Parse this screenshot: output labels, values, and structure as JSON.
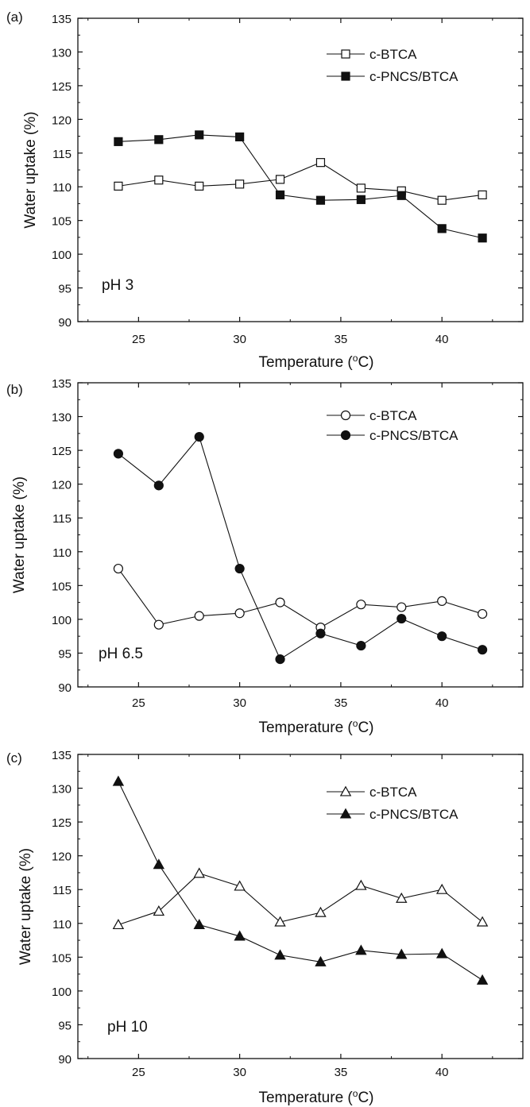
{
  "chart_data": [
    {
      "type": "line",
      "panel_label": "(a)",
      "annotation": "pH 3",
      "xlabel": "Temperature (",
      "xlabel_deg": "o",
      "xlabel_unit": "C)",
      "ylabel": "Water uptake (%)",
      "xlim": [
        22,
        44
      ],
      "ylim": [
        90,
        135
      ],
      "xticks": [
        25,
        30,
        35,
        40
      ],
      "yticks": [
        90,
        95,
        100,
        105,
        110,
        115,
        120,
        125,
        130,
        135
      ],
      "x": [
        24,
        26,
        28,
        30,
        32,
        34,
        36,
        38,
        40,
        42
      ],
      "marker": "square",
      "series": [
        {
          "name": "c-BTCA",
          "filled": false,
          "values": [
            110.1,
            111.0,
            110.1,
            110.4,
            111.1,
            113.6,
            109.8,
            109.4,
            108.0,
            108.8
          ]
        },
        {
          "name": "c-PNCS/BTCA",
          "filled": true,
          "values": [
            116.7,
            117.0,
            117.7,
            117.4,
            108.8,
            108.0,
            108.1,
            108.7,
            103.8,
            102.4
          ]
        }
      ]
    },
    {
      "type": "line",
      "panel_label": "(b)",
      "annotation": "pH 6.5",
      "xlabel": "Temperature (",
      "xlabel_deg": "o",
      "xlabel_unit": "C)",
      "ylabel": "Water uptake (%)",
      "xlim": [
        22,
        44
      ],
      "ylim": [
        90,
        135
      ],
      "xticks": [
        25,
        30,
        35,
        40
      ],
      "yticks": [
        90,
        95,
        100,
        105,
        110,
        115,
        120,
        125,
        130,
        135
      ],
      "x": [
        24,
        26,
        28,
        30,
        32,
        34,
        36,
        38,
        40,
        42
      ],
      "marker": "circle",
      "series": [
        {
          "name": "c-BTCA",
          "filled": false,
          "values": [
            107.5,
            99.2,
            100.5,
            100.9,
            102.5,
            98.8,
            102.2,
            101.8,
            102.7,
            100.8
          ]
        },
        {
          "name": "c-PNCS/BTCA",
          "filled": true,
          "values": [
            124.5,
            119.8,
            127.0,
            107.5,
            94.1,
            97.9,
            96.1,
            100.1,
            97.5,
            95.5
          ]
        }
      ]
    },
    {
      "type": "line",
      "panel_label": "(c)",
      "annotation": "pH 10",
      "xlabel": "Temperature (",
      "xlabel_deg": "o",
      "xlabel_unit": "C)",
      "ylabel": "Water uptake (%)",
      "xlim": [
        22,
        44
      ],
      "ylim": [
        90,
        135
      ],
      "xticks": [
        25,
        30,
        35,
        40
      ],
      "yticks": [
        90,
        95,
        100,
        105,
        110,
        115,
        120,
        125,
        130,
        135
      ],
      "x": [
        24,
        26,
        28,
        30,
        32,
        34,
        36,
        38,
        40,
        42
      ],
      "marker": "triangle",
      "series": [
        {
          "name": "c-BTCA",
          "filled": false,
          "values": [
            109.8,
            111.8,
            117.4,
            115.5,
            110.2,
            111.6,
            115.6,
            113.7,
            115.0,
            110.2
          ]
        },
        {
          "name": "c-PNCS/BTCA",
          "filled": true,
          "values": [
            131.0,
            118.7,
            109.8,
            108.1,
            105.3,
            104.3,
            106.0,
            105.4,
            105.5,
            101.6
          ]
        }
      ]
    }
  ]
}
